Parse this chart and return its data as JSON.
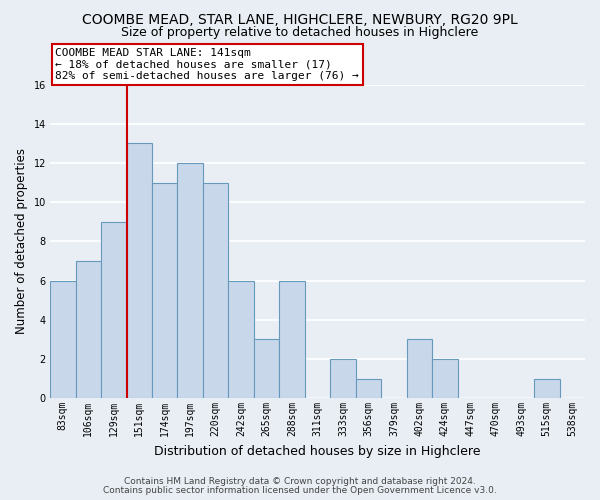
{
  "title": "COOMBE MEAD, STAR LANE, HIGHCLERE, NEWBURY, RG20 9PL",
  "subtitle": "Size of property relative to detached houses in Highclere",
  "xlabel": "Distribution of detached houses by size in Highclere",
  "ylabel": "Number of detached properties",
  "bin_labels": [
    "83sqm",
    "106sqm",
    "129sqm",
    "151sqm",
    "174sqm",
    "197sqm",
    "220sqm",
    "242sqm",
    "265sqm",
    "288sqm",
    "311sqm",
    "333sqm",
    "356sqm",
    "379sqm",
    "402sqm",
    "424sqm",
    "447sqm",
    "470sqm",
    "493sqm",
    "515sqm",
    "538sqm"
  ],
  "bar_heights": [
    6,
    7,
    9,
    13,
    11,
    12,
    11,
    6,
    3,
    6,
    0,
    2,
    1,
    0,
    3,
    2,
    0,
    0,
    0,
    1,
    0
  ],
  "bar_color": "#c8d8ea",
  "bar_edge_color": "#6699bb",
  "ylim": [
    0,
    16
  ],
  "yticks": [
    0,
    2,
    4,
    6,
    8,
    10,
    12,
    14,
    16
  ],
  "vline_color": "#cc0000",
  "vline_x": 2.5,
  "annotation_text": "COOMBE MEAD STAR LANE: 141sqm\n← 18% of detached houses are smaller (17)\n82% of semi-detached houses are larger (76) →",
  "annotation_box_facecolor": "#ffffff",
  "annotation_box_edgecolor": "#cc0000",
  "footer_line1": "Contains HM Land Registry data © Crown copyright and database right 2024.",
  "footer_line2": "Contains public sector information licensed under the Open Government Licence v3.0.",
  "fig_facecolor": "#e8eef4",
  "plot_facecolor": "#e8eef4",
  "grid_color": "#ffffff",
  "title_fontsize": 10,
  "subtitle_fontsize": 9,
  "tick_fontsize": 7,
  "ylabel_fontsize": 8.5,
  "xlabel_fontsize": 9,
  "footer_fontsize": 6.5,
  "annotation_fontsize": 8
}
